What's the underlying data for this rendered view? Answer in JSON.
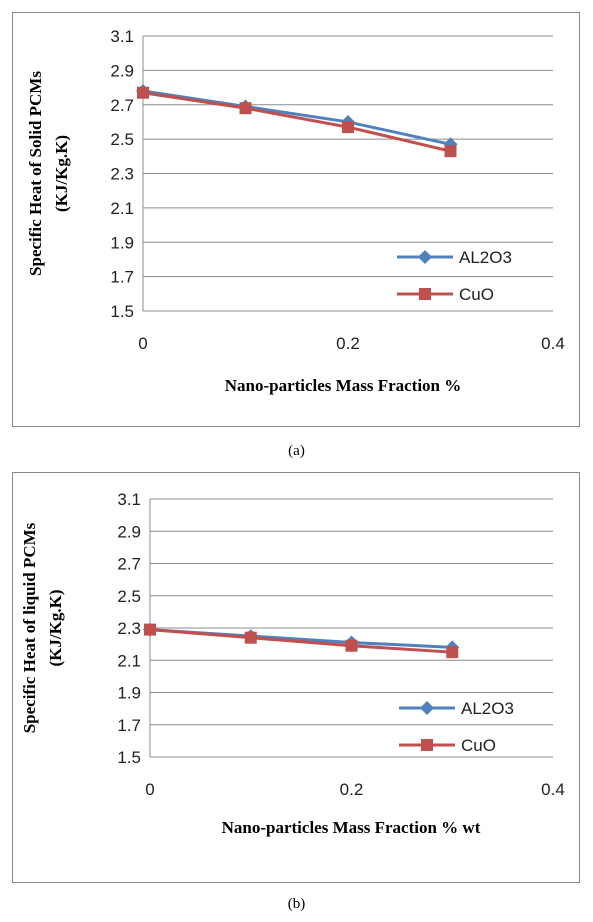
{
  "chart_data": [
    {
      "type": "line",
      "panel_caption": "(a)",
      "xlabel": "Nano-particles Mass Fraction %",
      "ylabel_line1": "Specific Heat of Solid PCMs",
      "ylabel_line2": "(KJ/Kg.K)",
      "xlim": [
        0,
        0.4
      ],
      "ylim": [
        1.5,
        3.1
      ],
      "x_ticks": [
        "0",
        "0.2",
        "0.4"
      ],
      "y_ticks": [
        "1.5",
        "1.7",
        "1.9",
        "2.1",
        "2.3",
        "2.5",
        "2.7",
        "2.9",
        "3.1"
      ],
      "grid": "horizontal",
      "legend_position": "bottom-right",
      "x": [
        0,
        0.1,
        0.2,
        0.3
      ],
      "series": [
        {
          "name": "AL2O3",
          "values": [
            2.78,
            2.69,
            2.6,
            2.47
          ],
          "color": "#4f81bd",
          "marker": "diamond"
        },
        {
          "name": "CuO",
          "values": [
            2.77,
            2.68,
            2.57,
            2.43
          ],
          "color": "#c0504d",
          "marker": "square"
        }
      ]
    },
    {
      "type": "line",
      "panel_caption": "(b)",
      "xlabel": "Nano-particles Mass Fraction % wt",
      "ylabel_line1": "Specific Heat of liquid PCMs",
      "ylabel_line2": "(KJ/Kg.K)",
      "xlim": [
        0,
        0.4
      ],
      "ylim": [
        1.5,
        3.1
      ],
      "x_ticks": [
        "0",
        "0.2",
        "0.4"
      ],
      "y_ticks": [
        "1.5",
        "1.7",
        "1.9",
        "2.1",
        "2.3",
        "2.5",
        "2.7",
        "2.9",
        "3.1"
      ],
      "grid": "horizontal",
      "legend_position": "bottom-right",
      "x": [
        0,
        0.1,
        0.2,
        0.3
      ],
      "series": [
        {
          "name": "AL2O3",
          "values": [
            2.29,
            2.25,
            2.21,
            2.18
          ],
          "color": "#4f81bd",
          "marker": "diamond"
        },
        {
          "name": "CuO",
          "values": [
            2.29,
            2.24,
            2.19,
            2.15
          ],
          "color": "#c0504d",
          "marker": "square"
        }
      ]
    }
  ]
}
